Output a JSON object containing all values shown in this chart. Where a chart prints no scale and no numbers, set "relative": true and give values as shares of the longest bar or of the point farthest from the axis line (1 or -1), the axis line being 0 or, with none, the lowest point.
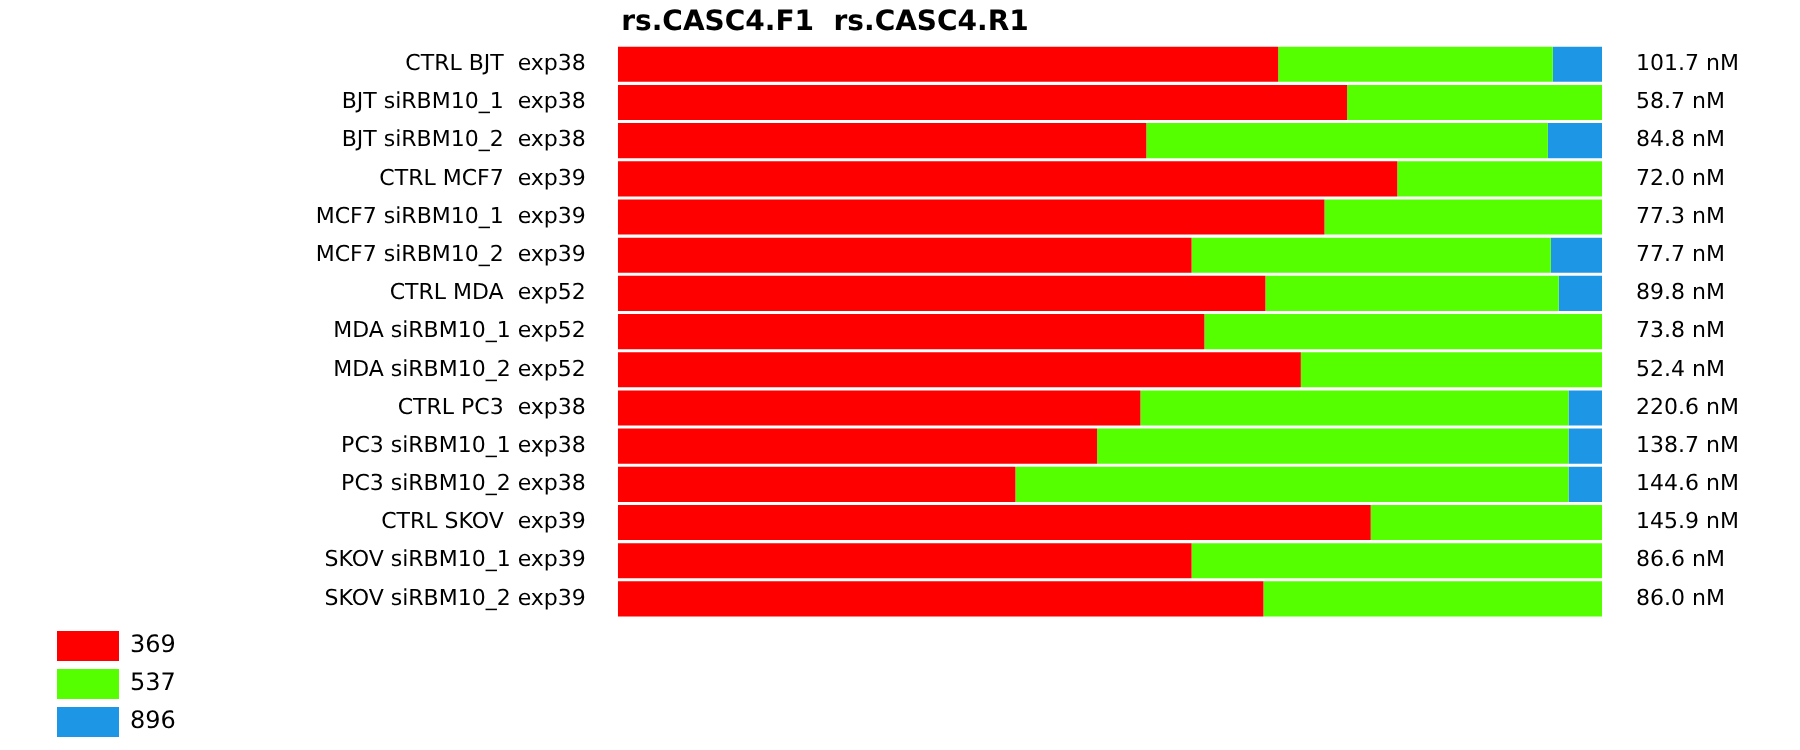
{
  "chart_data": {
    "type": "bar",
    "title": "rs.CASC4.F1  rs.CASC4.R1",
    "orientation": "horizontal",
    "stacked": true,
    "relative": true,
    "legend": "bottom left",
    "categories": [
      "CTRL BJT  exp38",
      "BJT siRBM10_1  exp38",
      "BJT siRBM10_2  exp38",
      "CTRL MCF7  exp39",
      "MCF7 siRBM10_1  exp39",
      "MCF7 siRBM10_2  exp39",
      "CTRL MDA  exp52",
      "MDA siRBM10_1 exp52",
      "MDA siRBM10_2 exp52",
      "CTRL PC3  exp38",
      "PC3 siRBM10_1 exp38",
      "PC3 siRBM10_2 exp38",
      "CTRL SKOV  exp39",
      "SKOV siRBM10_1 exp39",
      "SKOV siRBM10_2 exp39"
    ],
    "series": [
      {
        "name": "369",
        "color": "#ff0000",
        "values": [
          0.671,
          0.741,
          0.537,
          0.792,
          0.718,
          0.583,
          0.658,
          0.596,
          0.694,
          0.531,
          0.487,
          0.404,
          0.765,
          0.583,
          0.656
        ]
      },
      {
        "name": "537",
        "color": "#55ff00",
        "values": [
          0.279,
          0.259,
          0.408,
          0.208,
          0.282,
          0.365,
          0.298,
          0.404,
          0.306,
          0.435,
          0.479,
          0.562,
          0.235,
          0.417,
          0.344
        ]
      },
      {
        "name": "896",
        "color": "#1e96e6",
        "values": [
          0.05,
          null,
          0.055,
          null,
          null,
          0.052,
          0.044,
          null,
          null,
          0.034,
          0.034,
          0.034,
          null,
          null,
          null
        ]
      }
    ],
    "annotations": [
      "101.7 nM",
      "58.7 nM",
      "84.8 nM",
      "72.0 nM",
      "77.3 nM",
      "77.7 nM",
      "89.8 nM",
      "73.8 nM",
      "52.4 nM",
      "220.6 nM",
      "138.7 nM",
      "144.6 nM",
      "145.9 nM",
      "86.6 nM",
      "86.0 nM"
    ]
  }
}
